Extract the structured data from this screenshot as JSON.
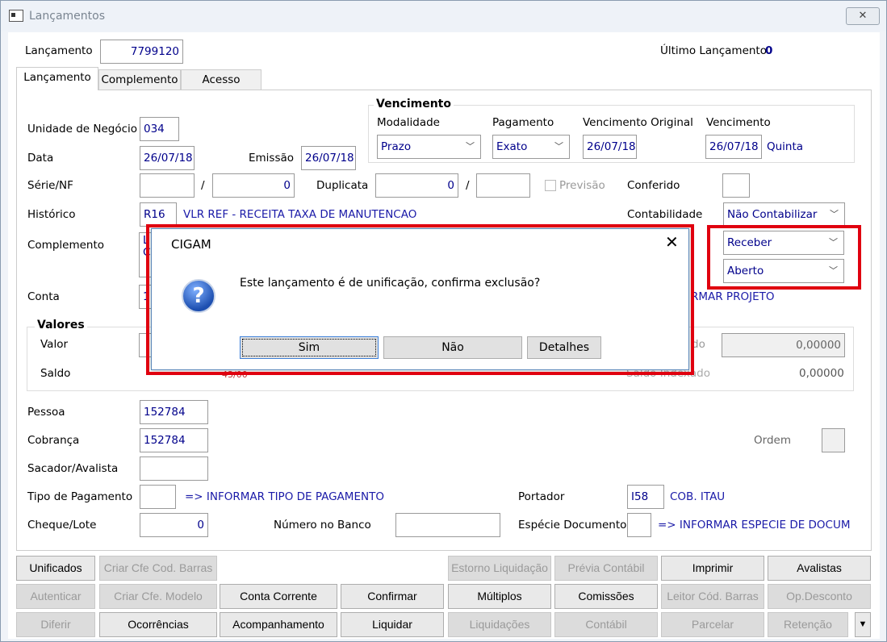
{
  "window": {
    "title": "Lançamentos",
    "close": "✕"
  },
  "header": {
    "lancamento_label": "Lançamento",
    "lancamento_value": "7799120",
    "ultimo_label": "Último Lançamento",
    "ultimo_value": "0"
  },
  "tabs": [
    {
      "label": "Lançamento",
      "active": true
    },
    {
      "label": "Complemento"
    },
    {
      "label": "Acesso"
    }
  ],
  "form": {
    "unidade_label": "Unidade de Negócio",
    "unidade_value": "034",
    "data_label": "Data",
    "data_value": "26/07/18",
    "emissao_label": "Emissão",
    "emissao_value": "26/07/18",
    "serie_label": "Série/NF",
    "serie_value": "",
    "slash": "/",
    "nf_value": "0",
    "duplicata_label": "Duplicata",
    "duplicata_value": "0",
    "duplicata_ext": "",
    "previsao_label": "Previsão",
    "conferido_label": "Conferido",
    "historico_label": "Histórico",
    "historico_code": "R16",
    "historico_text": "VLR REF - RECEITA TAXA DE MANUTENCAO",
    "contabilidade_label": "Contabilidade",
    "contabilidade_value": "Não Contabilizar",
    "complemento_label": "Complemento",
    "complemento_partial": "L\nC",
    "tipo_value": "Receber",
    "situacao_value": "Aberto",
    "conta_label": "Conta",
    "conta_partial": "1",
    "projeto_partial": "RMAR PROJETO",
    "valores_title": "Valores",
    "valor_label": "Valor",
    "saldo_label": "Saldo",
    "saldo_partial": "43/00",
    "valor_indexado_partial": "do",
    "valor_indexado_value": "0,00000",
    "saldo_indexado_partial": "Saldo Indexado",
    "saldo_indexado_value": "0,00000",
    "pessoa_label": "Pessoa",
    "pessoa_value": "152784",
    "cobranca_label": "Cobrança",
    "cobranca_value": "152784",
    "ordem_label": "Ordem",
    "sacador_label": "Sacador/Avalista",
    "tipo_pag_label": "Tipo de Pagamento",
    "tipo_pag_link": "=> INFORMAR TIPO DE PAGAMENTO",
    "portador_label": "Portador",
    "portador_value": "I58",
    "portador_text": "COB. ITAU",
    "cheque_label": "Cheque/Lote",
    "cheque_value": "0",
    "numero_banco_label": "Número no Banco",
    "especie_label": "Espécie Documento",
    "especie_link": "=> INFORMAR ESPECIE DE DOCUM"
  },
  "vencimento": {
    "title": "Vencimento",
    "modalidade_label": "Modalidade",
    "modalidade_value": "Prazo",
    "pagamento_label": "Pagamento",
    "pagamento_value": "Exato",
    "original_label": "Vencimento Original",
    "original_value": "26/07/18",
    "venc_label": "Vencimento",
    "venc_value": "26/07/18",
    "dia_semana": "Quinta"
  },
  "dialog": {
    "title": "CIGAM",
    "message": "Este lançamento é de unificação, confirma exclusão?",
    "icon": "question-icon",
    "buttons": [
      "Sim",
      "Não",
      "Detalhes"
    ]
  },
  "buttons": [
    {
      "label": "Unificados",
      "enabled": true
    },
    {
      "label": "Criar Cfe Cod. Barras",
      "enabled": false
    },
    {
      "label": "Estorno Liquidação",
      "enabled": false
    },
    {
      "label": "Prévia Contábil",
      "enabled": false
    },
    {
      "label": "Imprimir",
      "enabled": true
    },
    {
      "label": "Avalistas",
      "enabled": true
    },
    {
      "label": "Autenticar",
      "enabled": false
    },
    {
      "label": "Criar Cfe. Modelo",
      "enabled": false
    },
    {
      "label": "Conta Corrente",
      "enabled": true
    },
    {
      "label": "Confirmar",
      "enabled": true
    },
    {
      "label": "Múltiplos",
      "enabled": true
    },
    {
      "label": "Comissões",
      "enabled": true
    },
    {
      "label": "Leitor Cód. Barras",
      "enabled": false
    },
    {
      "label": "Op.Desconto",
      "enabled": false
    },
    {
      "label": "Diferir",
      "enabled": false
    },
    {
      "label": "Ocorrências",
      "enabled": true
    },
    {
      "label": "Acompanhamento",
      "enabled": true
    },
    {
      "label": "Liquidar",
      "enabled": true
    },
    {
      "label": "Liquidações",
      "enabled": false
    },
    {
      "label": "Contábil",
      "enabled": false
    },
    {
      "label": "Parcelar",
      "enabled": false
    },
    {
      "label": "Retenção",
      "enabled": false
    }
  ],
  "more_button": "▼",
  "colors": {
    "highlight": "#e0000f",
    "value_text": "#00008b",
    "link": "#1a1aa8"
  }
}
